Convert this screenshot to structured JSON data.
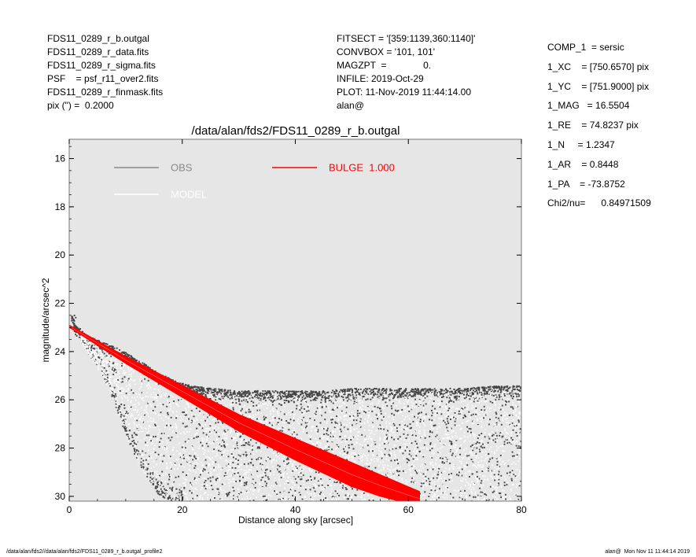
{
  "header_left": [
    "FDS11_0289_r_b.outgal",
    "FDS11_0289_r_data.fits",
    "FDS11_0289_r_sigma.fits",
    "PSF    = psf_r11_over2.fits",
    "FDS11_0289_r_finmask.fits",
    "pix (\") =  0.2000"
  ],
  "header_mid": [
    "FITSECT = '[359:1139,360:1140]'",
    "CONVBOX = '101, 101'",
    "MAGZPT  =              0.",
    "INFILE: 2019-Oct-29",
    "PLOT: 11-Nov-2019 11:44:14.00",
    "alan@"
  ],
  "header_right": [
    "COMP_1  = sersic",
    "1_XC    = [750.6570] pix",
    "1_YC    = [751.9000] pix",
    "1_MAG   = 16.5504",
    "1_RE    = 74.8237 pix",
    "1_N     = 1.2347",
    "1_AR    = 0.8448",
    "1_PA    = -73.8752",
    "",
    "Chi2/nu=      0.84971509"
  ],
  "footer": {
    "left": "/data/alan/fds2//data/alan/fds2/FDS11_0289_r_b.outgal_profile2",
    "right": "alan@  Mon Nov 11 11:44:14 2019"
  },
  "colors": {
    "plot_bg": "#e6e6e6",
    "obs": "#888888",
    "obs_points": "#444444",
    "model": "#ffffff",
    "bulge": "#ff0000"
  },
  "chart_data": {
    "type": "scatter",
    "title": "/data/alan/fds2/FDS11_0289_r_b.outgal",
    "xlabel": "Distance along sky [arcsec]",
    "ylabel": "magnitude/arcsec^2",
    "xlim": [
      0,
      80
    ],
    "ylim": [
      30.2,
      15.2
    ],
    "y_inverted": true,
    "xticks": [
      0,
      20,
      40,
      60,
      80
    ],
    "yticks": [
      16,
      18,
      20,
      22,
      24,
      26,
      28,
      30
    ],
    "grid": false,
    "legend": [
      {
        "label": "OBS",
        "color": "#888888",
        "position": "top-left"
      },
      {
        "label": "MODEL",
        "color": "#ffffff",
        "position": "top-left"
      },
      {
        "label": "BULGE  1.000",
        "color": "#ff0000",
        "position": "top-center"
      }
    ],
    "series": [
      {
        "name": "OBS",
        "style": "scatter",
        "color": "#444444",
        "x": [
          0.5,
          1,
          1.5,
          2,
          3,
          4,
          5,
          6,
          7,
          8,
          9,
          10,
          12,
          14,
          16,
          18,
          20,
          22,
          25,
          30,
          35,
          40,
          45,
          50,
          55,
          60,
          65,
          70,
          75,
          80
        ],
        "y_upper": [
          22.5,
          22.9,
          23.0,
          23.1,
          23.3,
          23.4,
          23.5,
          23.6,
          23.7,
          23.8,
          23.9,
          24.0,
          24.3,
          24.6,
          24.9,
          25.1,
          25.3,
          25.4,
          25.5,
          25.6,
          25.6,
          25.6,
          25.6,
          25.5,
          25.5,
          25.5,
          25.5,
          25.5,
          25.4,
          25.4
        ],
        "y_lower": [
          22.7,
          23.2,
          23.4,
          23.6,
          24.0,
          24.3,
          24.7,
          25.1,
          25.6,
          26.2,
          26.8,
          27.5,
          28.5,
          29.3,
          30.0,
          30.2,
          30.2,
          30.2,
          30.2,
          30.2,
          30.2,
          30.2,
          30.2,
          30.2,
          30.2,
          30.2,
          30.2,
          30.2,
          30.2,
          30.2
        ]
      },
      {
        "name": "BULGE  1.000",
        "style": "band",
        "color": "#ff0000",
        "x": [
          0,
          10,
          20,
          30,
          40,
          50,
          55,
          60,
          62
        ],
        "y_upper": [
          22.9,
          24.2,
          25.4,
          26.6,
          27.6,
          28.6,
          29.1,
          29.6,
          29.8
        ],
        "y_lower": [
          23.0,
          24.5,
          25.9,
          27.3,
          28.5,
          29.6,
          30.0,
          30.3,
          30.4
        ]
      },
      {
        "name": "MODEL",
        "style": "line",
        "color": "#ffffff",
        "x": [
          0,
          10,
          20,
          30,
          40,
          50,
          55,
          60,
          62
        ],
        "y": [
          22.95,
          24.35,
          25.65,
          26.95,
          28.05,
          29.1,
          29.55,
          29.95,
          30.1
        ]
      }
    ]
  }
}
